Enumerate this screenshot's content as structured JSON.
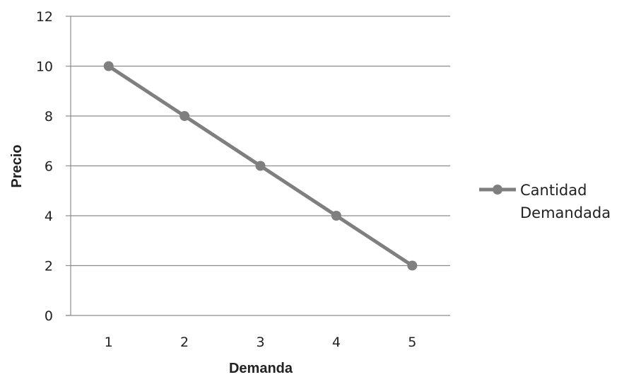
{
  "chart_data": {
    "type": "line",
    "title": "",
    "xlabel": "Demanda",
    "ylabel": "Precio",
    "categories": [
      "1",
      "2",
      "3",
      "4",
      "5"
    ],
    "ylim": [
      0,
      12
    ],
    "yticks": [
      "0",
      "2",
      "4",
      "6",
      "8",
      "10",
      "12"
    ],
    "grid": "horizontal",
    "legend_position": "right",
    "series": [
      {
        "name_lines": [
          "Cantidad",
          "Demandada"
        ],
        "values": [
          10,
          8,
          6,
          4,
          2
        ],
        "color": "#7f7f7f",
        "marker": "circle"
      }
    ]
  }
}
